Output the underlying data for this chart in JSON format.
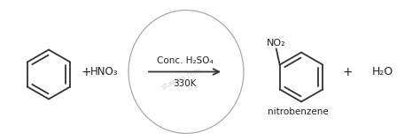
{
  "bg_color": "#ffffff",
  "line_color": "#333333",
  "text_color": "#222222",
  "arrow_above": "Conc. H₂SO₄",
  "arrow_below": "330K",
  "reagent": "HNO₃",
  "product_label": "nitrobenzene",
  "water": "H₂O",
  "no2": "NO₂",
  "watermark": "shaalaa.com",
  "figw": 4.74,
  "figh": 1.59,
  "dpi": 100
}
